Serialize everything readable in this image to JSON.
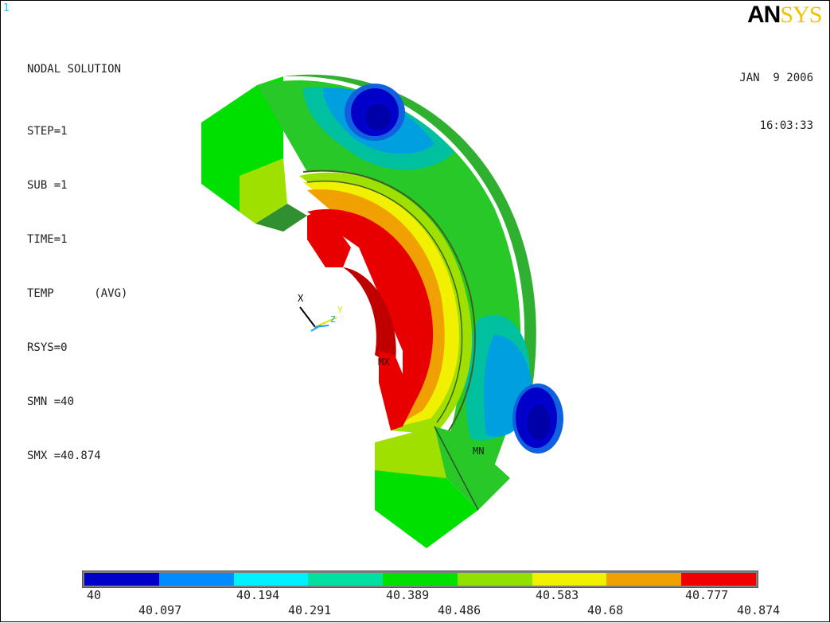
{
  "window_number": "1",
  "info": {
    "title": "NODAL SOLUTION",
    "lines": [
      "STEP=1",
      "SUB =1",
      "TIME=1",
      "TEMP      (AVG)",
      "RSYS=0",
      "SMN =40",
      "SMX =40.874"
    ]
  },
  "logo": {
    "part1": "AN",
    "part2": "SYS"
  },
  "date": "JAN  9 2006",
  "time": "16:03:33",
  "triad": {
    "x": "X",
    "y": "Y",
    "z": "Z"
  },
  "markers": {
    "max": "MX",
    "min": "MN"
  },
  "legend": {
    "colors": [
      "#0000c8",
      "#008cff",
      "#00f0ff",
      "#00e0a0",
      "#00e000",
      "#90e000",
      "#f0f000",
      "#f0a000",
      "#f00000"
    ],
    "upper_labels": [
      "40",
      "40.194",
      "40.389",
      "40.583",
      "40.777"
    ],
    "lower_labels": [
      "40.097",
      "40.291",
      "40.486",
      "40.68",
      "40.874"
    ]
  },
  "palette": {
    "outer_green": "#28c828",
    "face_green": "#00e000",
    "block_green": "#20d020",
    "side_green": "#30b030",
    "lime": "#a0e000",
    "yellow": "#f0f000",
    "orange": "#f0a000",
    "red": "#e80000",
    "dark_red": "#c00000",
    "blue": "#0000c8",
    "mid_blue": "#1060e0",
    "cyan_blue": "#00a0e0",
    "teal": "#00c0a0",
    "olive": "#70a020"
  }
}
